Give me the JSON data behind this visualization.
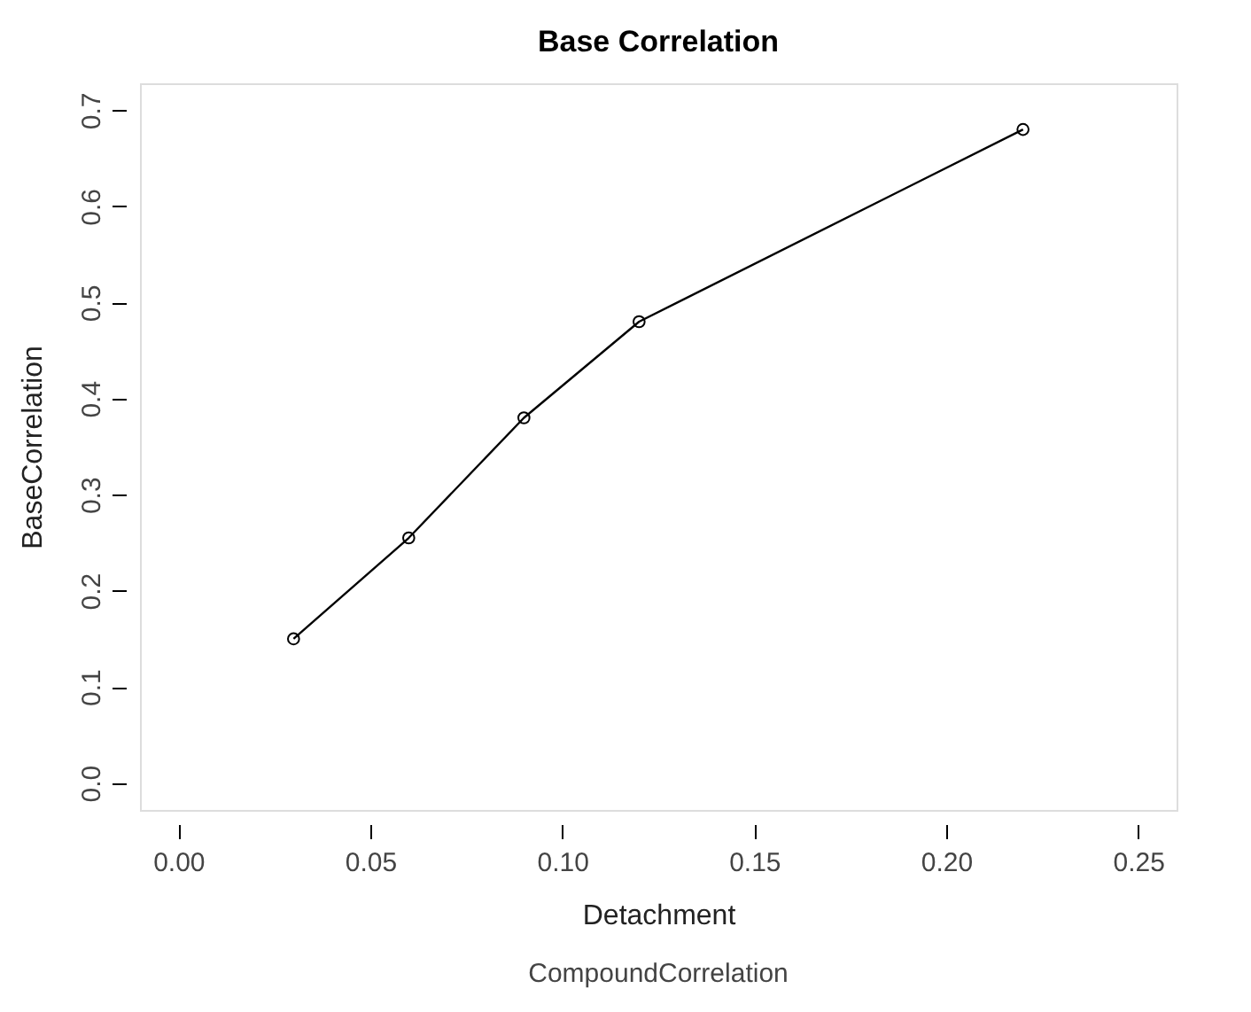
{
  "chart_data": {
    "type": "line",
    "title": "Base Correlation",
    "xlabel": "Detachment",
    "ylabel": "BaseCorrelation",
    "annotations": [
      "CompoundCorrelation"
    ],
    "x": [
      0.03,
      0.06,
      0.09,
      0.12,
      0.22
    ],
    "series": [
      {
        "color": "#000000",
        "values": [
          0.15,
          0.255,
          0.38,
          0.48,
          0.68
        ]
      }
    ],
    "marker": "circle",
    "line_style": "solid",
    "xlim": [
      -0.01,
      0.26
    ],
    "ylim": [
      -0.028,
      0.728
    ],
    "xticks": [
      {
        "value": 0,
        "label": "0.00"
      },
      0.05,
      {
        "value": 0.1,
        "label": "0.10"
      },
      0.15,
      {
        "value": 0.2,
        "label": "0.20"
      },
      0.25
    ],
    "yticks": [
      {
        "value": 0,
        "label": "0.0"
      },
      0.1,
      0.2,
      0.3,
      0.4,
      0.5,
      0.6,
      0.7
    ]
  }
}
